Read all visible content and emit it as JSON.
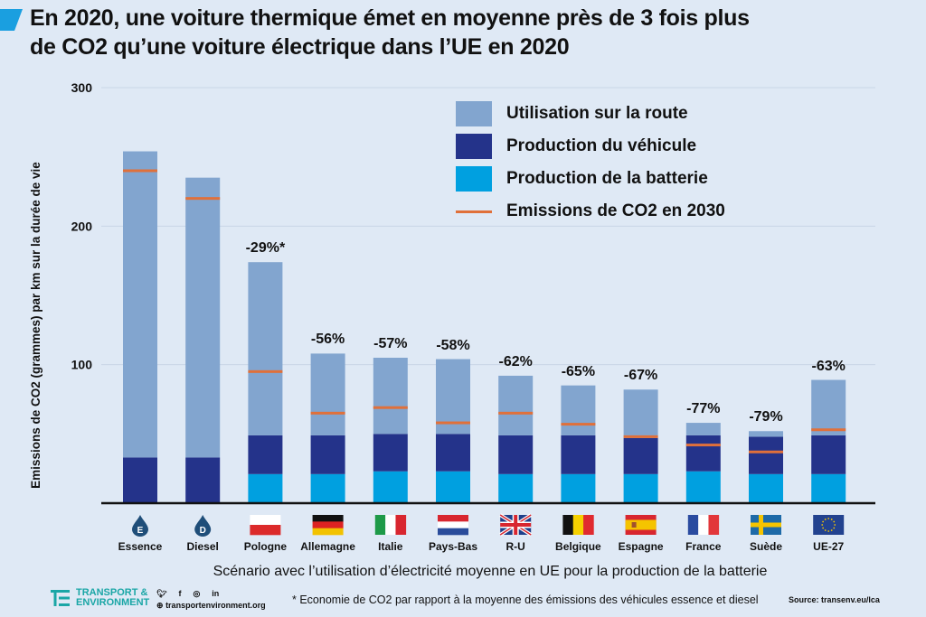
{
  "title_lines": [
    "En 2020, une voiture thermique émet en moyenne près de 3 fois plus",
    "de CO2 qu’une voiture électrique dans l’UE en 2020"
  ],
  "colors": {
    "background": "#dfe9f5",
    "road_use": "#82a5cf",
    "vehicle_production": "#24338a",
    "battery_production": "#00a0e0",
    "emissions_2030": "#e0703a",
    "title_accent": "#1a9fe0",
    "gridline": "#c9d6e6",
    "axis": "#111111",
    "logo": "#1aa6a6"
  },
  "chart_data": {
    "type": "bar",
    "stacked": true,
    "title": "En 2020, une voiture thermique émet en moyenne près de 3 fois plus de CO2 qu’une voiture électrique dans l’UE en 2020",
    "xlabel": "Scénario avec l’utilisation d’électricité moyenne en UE pour la production de la batterie",
    "ylabel": "Emissions de CO2 (grammes) par km sur la durée de vie",
    "ylim": [
      0,
      300
    ],
    "yticks": [
      100,
      200,
      300
    ],
    "grid": true,
    "legend_position": "top-right",
    "categories": [
      "Essence",
      "Diesel",
      "Pologne",
      "Allemagne",
      "Italie",
      "Pays-Bas",
      "R-U",
      "Belgique",
      "Espagne",
      "France",
      "Suède",
      "UE-27"
    ],
    "category_icons": [
      "fuel-drop-e-icon",
      "fuel-drop-d-icon",
      "flag-poland-icon",
      "flag-germany-icon",
      "flag-italy-icon",
      "flag-netherlands-icon",
      "flag-uk-icon",
      "flag-belgium-icon",
      "flag-spain-icon",
      "flag-france-icon",
      "flag-sweden-icon",
      "flag-eu-icon"
    ],
    "series": [
      {
        "name": "Production de la batterie",
        "values": [
          0,
          0,
          21,
          21,
          23,
          23,
          21,
          21,
          21,
          23,
          21,
          21
        ]
      },
      {
        "name": "Production du véhicule",
        "values": [
          33,
          33,
          28,
          28,
          27,
          27,
          28,
          28,
          26,
          26,
          27,
          28
        ]
      },
      {
        "name": "Utilisation sur la route",
        "values": [
          221,
          202,
          125,
          59,
          55,
          54,
          43,
          36,
          35,
          9,
          4,
          40
        ]
      }
    ],
    "totals": [
      254,
      235,
      174,
      108,
      105,
      104,
      92,
      85,
      82,
      58,
      52,
      89
    ],
    "emissions_2030": {
      "name": "Emissions de CO2 en 2030",
      "values": [
        240,
        220,
        95,
        65,
        69,
        58,
        65,
        57,
        48,
        42,
        37,
        53
      ]
    },
    "data_labels": [
      "",
      "",
      "-29%*",
      "-56%",
      "-57%",
      "-58%",
      "-62%",
      "-65%",
      "-67%",
      "-77%",
      "-79%",
      "-63%"
    ]
  },
  "legend": [
    {
      "label": "Utilisation sur la route",
      "type": "swatch",
      "color_key": "road_use"
    },
    {
      "label": "Production du véhicule",
      "type": "swatch",
      "color_key": "vehicle_production"
    },
    {
      "label": "Production de la batterie",
      "type": "swatch",
      "color_key": "battery_production"
    },
    {
      "label": "Emissions de CO2 en 2030",
      "type": "line",
      "color_key": "emissions_2030"
    }
  ],
  "footer": {
    "logo_line1": "TRANSPORT &",
    "logo_line2": "ENVIRONMENT",
    "website": "transportenvironment.org",
    "social": [
      "twitter",
      "facebook",
      "instagram",
      "linkedin"
    ],
    "footnote": "* Economie de CO2 par rapport à la moyenne des émissions des véhicules essence et diesel",
    "source": "Source: transenv.eu/lca"
  }
}
